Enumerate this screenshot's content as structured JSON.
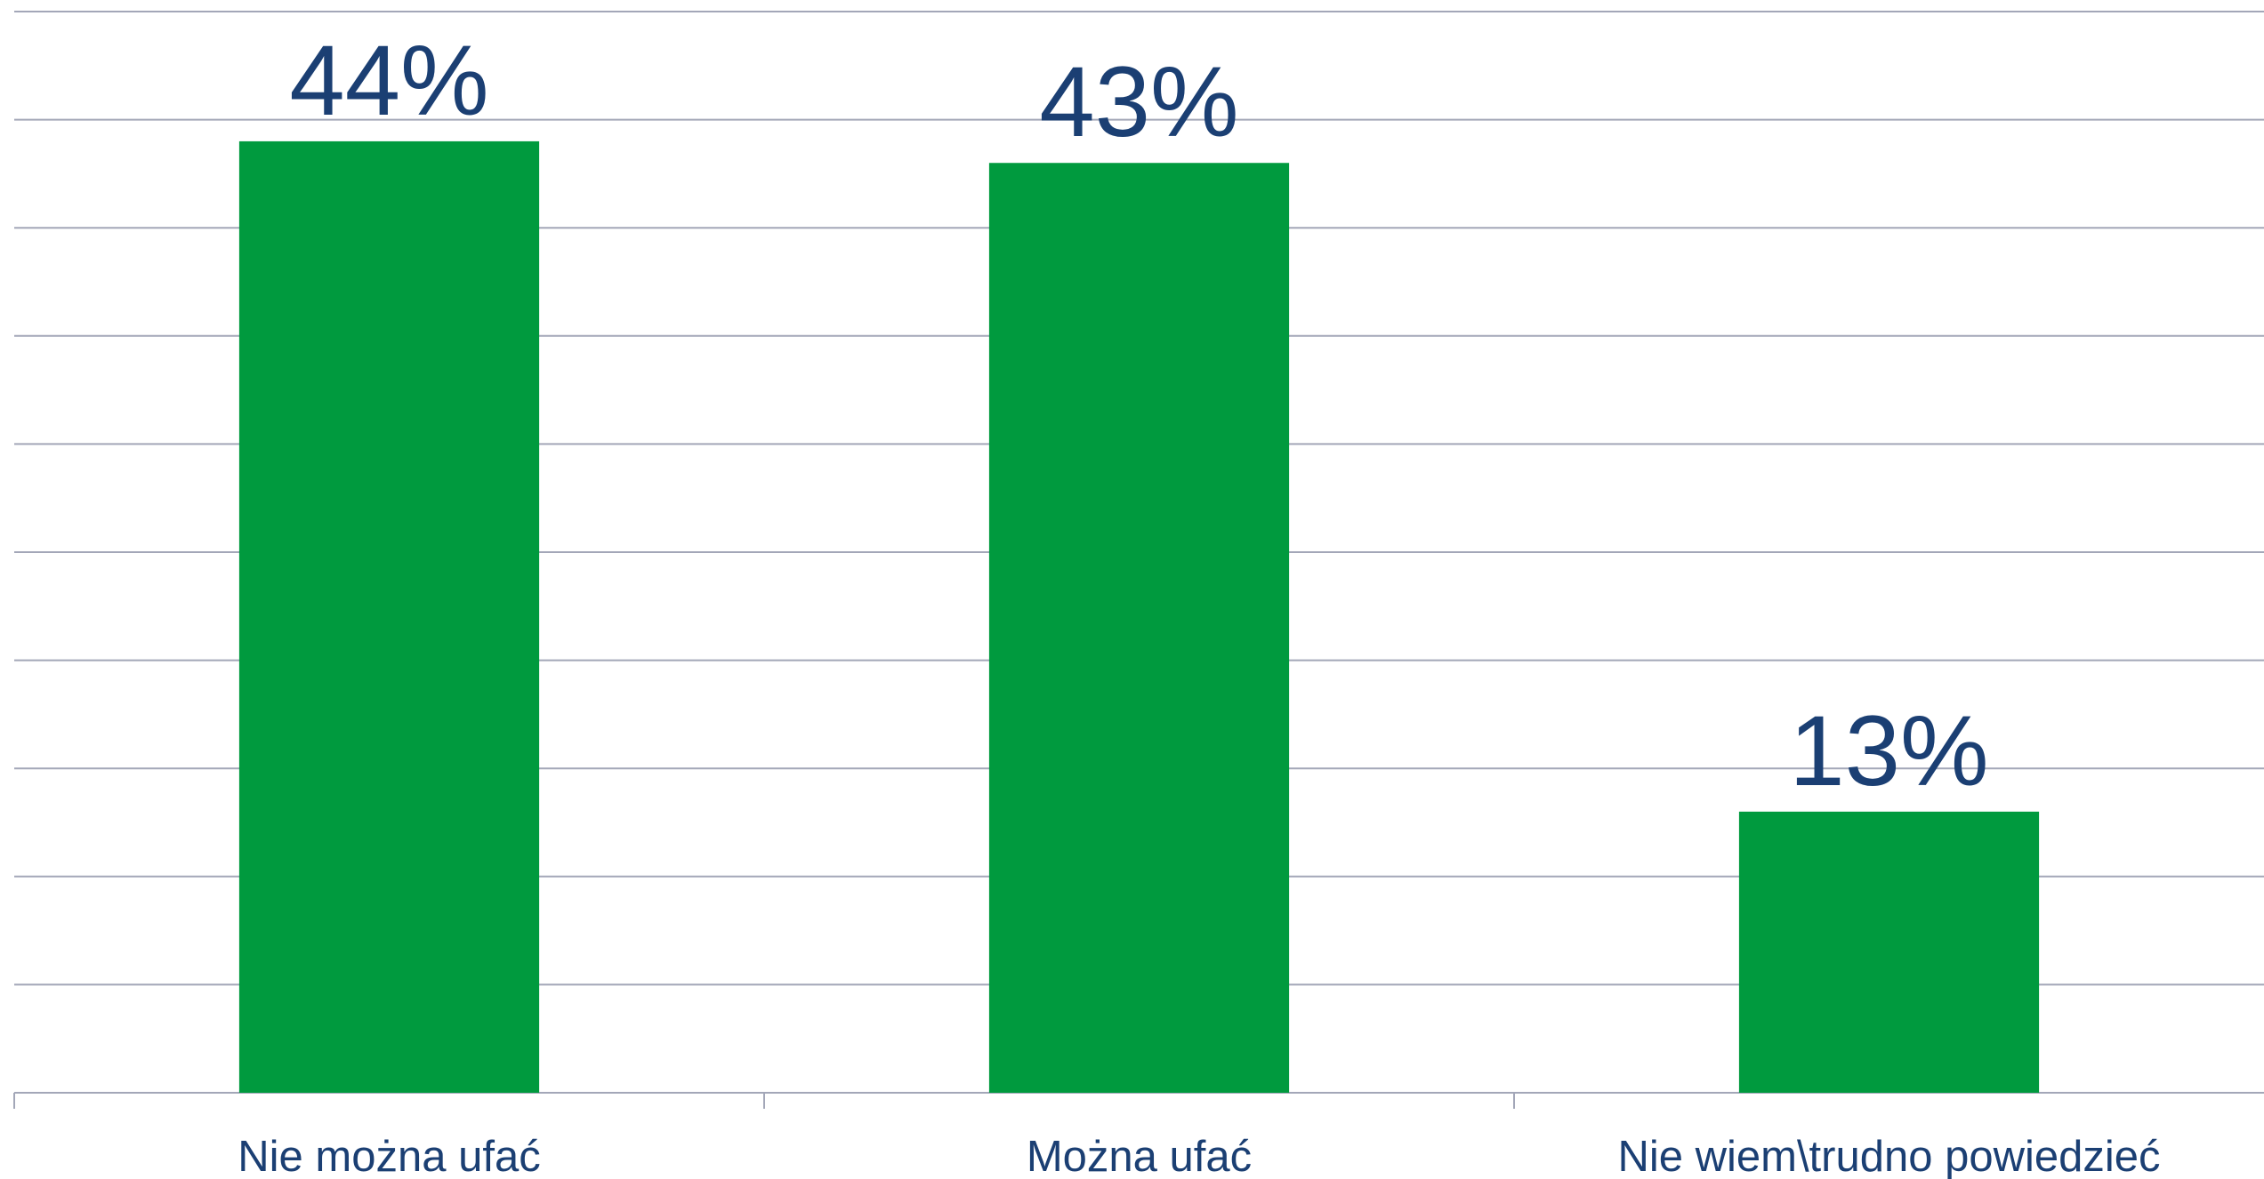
{
  "chart_data": {
    "type": "bar",
    "categories": [
      "Nie można ufać",
      "Można ufać",
      "Nie wiem\\trudno powiedzieć"
    ],
    "values": [
      44,
      43,
      13
    ],
    "value_labels": [
      "44%",
      "43%",
      "13%"
    ],
    "color": "#009a3e",
    "ylim": [
      0,
      50
    ],
    "yticks": [
      0,
      5,
      10,
      15,
      20,
      25,
      30,
      35,
      40,
      45,
      50
    ],
    "grid": true
  }
}
